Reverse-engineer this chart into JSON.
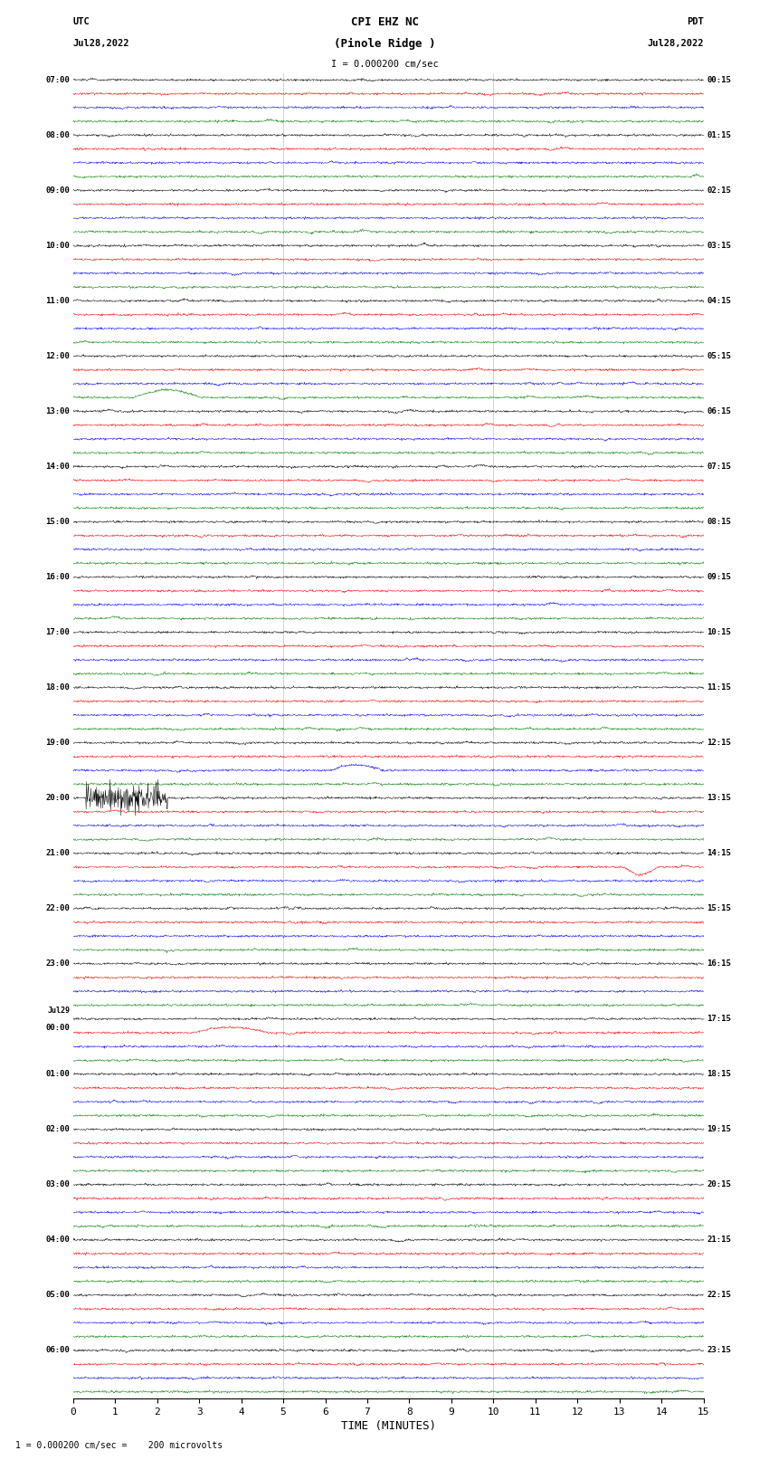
{
  "title_line1": "CPI EHZ NC",
  "title_line2": "(Pinole Ridge )",
  "scale_label": "I = 0.000200 cm/sec",
  "footer_label": "1 = 0.000200 cm/sec =    200 microvolts",
  "utc_label": "UTC",
  "pdt_label": "PDT",
  "date_left": "Jul28,2022",
  "date_right": "Jul28,2022",
  "xlabel": "TIME (MINUTES)",
  "xlim": [
    0,
    15
  ],
  "xticks": [
    0,
    1,
    2,
    3,
    4,
    5,
    6,
    7,
    8,
    9,
    10,
    11,
    12,
    13,
    14,
    15
  ],
  "colors": [
    "black",
    "red",
    "blue",
    "green"
  ],
  "n_rows": 96,
  "fig_width": 8.5,
  "fig_height": 16.13,
  "left_times": [
    "07:00",
    "",
    "",
    "",
    "08:00",
    "",
    "",
    "",
    "09:00",
    "",
    "",
    "",
    "10:00",
    "",
    "",
    "",
    "11:00",
    "",
    "",
    "",
    "12:00",
    "",
    "",
    "",
    "13:00",
    "",
    "",
    "",
    "14:00",
    "",
    "",
    "",
    "15:00",
    "",
    "",
    "",
    "16:00",
    "",
    "",
    "",
    "17:00",
    "",
    "",
    "",
    "18:00",
    "",
    "",
    "",
    "19:00",
    "",
    "",
    "",
    "20:00",
    "",
    "",
    "",
    "21:00",
    "",
    "",
    "",
    "22:00",
    "",
    "",
    "",
    "23:00",
    "",
    "",
    "",
    "Jul29\n00:00",
    "",
    "",
    "",
    "01:00",
    "",
    "",
    "",
    "02:00",
    "",
    "",
    "",
    "03:00",
    "",
    "",
    "",
    "04:00",
    "",
    "",
    "",
    "05:00",
    "",
    "",
    "",
    "06:00",
    "",
    "",
    ""
  ],
  "right_times": [
    "00:15",
    "",
    "",
    "",
    "01:15",
    "",
    "",
    "",
    "02:15",
    "",
    "",
    "",
    "03:15",
    "",
    "",
    "",
    "04:15",
    "",
    "",
    "",
    "05:15",
    "",
    "",
    "",
    "06:15",
    "",
    "",
    "",
    "07:15",
    "",
    "",
    "",
    "08:15",
    "",
    "",
    "",
    "09:15",
    "",
    "",
    "",
    "10:15",
    "",
    "",
    "",
    "11:15",
    "",
    "",
    "",
    "12:15",
    "",
    "",
    "",
    "13:15",
    "",
    "",
    "",
    "14:15",
    "",
    "",
    "",
    "15:15",
    "",
    "",
    "",
    "16:15",
    "",
    "",
    "",
    "17:15",
    "",
    "",
    "",
    "18:15",
    "",
    "",
    "",
    "19:15",
    "",
    "",
    "",
    "20:15",
    "",
    "",
    "",
    "21:15",
    "",
    "",
    "",
    "22:15",
    "",
    "",
    "",
    "23:15",
    "",
    "",
    ""
  ],
  "background_color": "white",
  "vline_color": "#999999",
  "vline_positions": [
    5.0,
    10.0
  ],
  "noise_base": 0.06,
  "spike_amp_range": [
    0.08,
    0.18
  ],
  "special_rows": {
    "green_spike_row": 48,
    "big_event_row": 52,
    "red_spike_row": 65,
    "blue_spike_row": 75
  }
}
